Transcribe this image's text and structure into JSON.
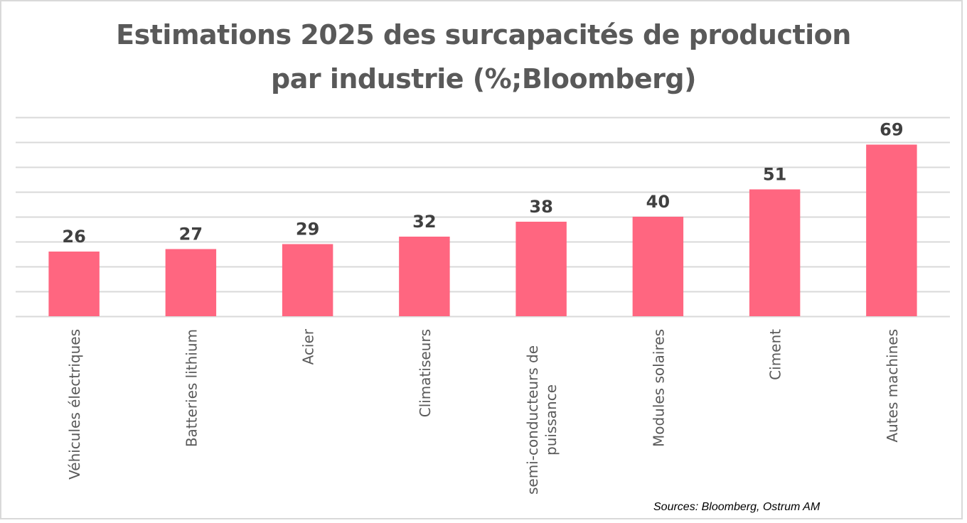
{
  "chart_data": {
    "type": "bar",
    "title": "Estimations 2025 des surcapacités de production par industrie (%;Bloomberg)",
    "title_lines": [
      "Estimations 2025 des surcapacités de production",
      "par industrie (%;Bloomberg)"
    ],
    "categories": [
      "Véhicules électriques",
      "Batteries lithium",
      "Acier",
      "Climatiseurs",
      "semi-conducteurs de puissance",
      "Modules solaires",
      "Ciment",
      "Autes machines"
    ],
    "category_lines": [
      [
        "Véhicules électriques"
      ],
      [
        "Batteries lithium"
      ],
      [
        "Acier"
      ],
      [
        "Climatiseurs"
      ],
      [
        "semi-conducteurs de",
        "puissance"
      ],
      [
        "Modules solaires"
      ],
      [
        "Ciment"
      ],
      [
        "Autes machines"
      ]
    ],
    "values": [
      26,
      27,
      29,
      32,
      38,
      40,
      51,
      69
    ],
    "data_labels": [
      "26",
      "27",
      "29",
      "32",
      "38",
      "40",
      "51",
      "69"
    ],
    "xlabel": "",
    "ylabel": "",
    "ylim": [
      0,
      80
    ],
    "ytick_step": 10,
    "y_axis_visible": false,
    "grid": true,
    "legend": "none",
    "bar_color": "#FF6680",
    "source": "Sources: Bloomberg, Ostrum AM"
  }
}
